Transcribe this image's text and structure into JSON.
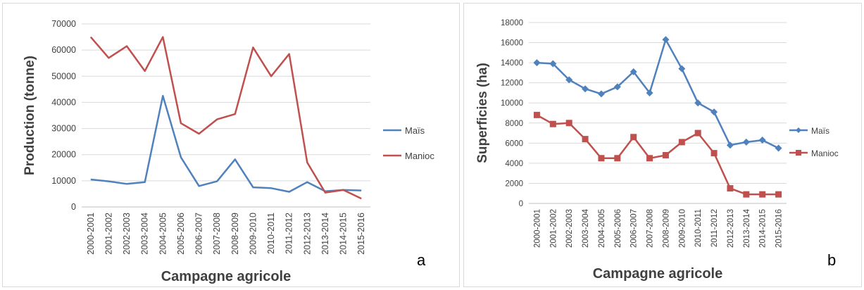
{
  "colors": {
    "mais": "#4f81bd",
    "manioc": "#c0504d",
    "grid": "#d9d9d9"
  },
  "panels": [
    {
      "letter": "a"
    },
    {
      "letter": "b"
    }
  ],
  "chart_data": [
    {
      "type": "line",
      "categories": [
        "2000-2001",
        "2001-2002",
        "2002-2003",
        "2003-2004",
        "2004-2005",
        "2005-2006",
        "2006-2007",
        "2007-2008",
        "2008-2009",
        "2009-2010",
        "2010-2011",
        "2011-2012",
        "2012-2013",
        "2013-2014",
        "2014-2015",
        "2015-2016"
      ],
      "series": [
        {
          "name": "Maïs",
          "color": "#4f81bd",
          "marker": "none",
          "values": [
            10500,
            9800,
            8800,
            9500,
            42500,
            19000,
            8000,
            9800,
            18200,
            7500,
            7200,
            5800,
            9500,
            6000,
            6500,
            6300
          ]
        },
        {
          "name": "Manioc",
          "color": "#c0504d",
          "marker": "none",
          "values": [
            65000,
            57000,
            61500,
            52000,
            65000,
            32000,
            28000,
            33500,
            35500,
            61000,
            50000,
            58500,
            17000,
            5500,
            6500,
            3200
          ]
        }
      ],
      "xlabel": "Campagne agricole",
      "ylabel": "Production (tonne)",
      "ylim": [
        0,
        70000
      ],
      "yticks": [
        0,
        10000,
        20000,
        30000,
        40000,
        50000,
        60000,
        70000
      ],
      "grid": true,
      "legend": "right"
    },
    {
      "type": "line",
      "categories": [
        "2000-2001",
        "2001-2002",
        "2002-2003",
        "2003-2004",
        "2004-2005",
        "2005-2006",
        "2006-2007",
        "2007-2008",
        "2008-2009",
        "2009-2010",
        "2010-2011",
        "2011-2012",
        "2012-2013",
        "2013-2014",
        "2014-2015",
        "2015-2016"
      ],
      "series": [
        {
          "name": "Maïs",
          "color": "#4f81bd",
          "marker": "diamond",
          "values": [
            14000,
            13900,
            12300,
            11400,
            10900,
            11600,
            13100,
            11000,
            16300,
            13400,
            10000,
            9100,
            5800,
            6100,
            6300,
            5500
          ]
        },
        {
          "name": "Manioc",
          "color": "#c0504d",
          "marker": "square",
          "values": [
            8800,
            7900,
            8000,
            6400,
            4500,
            4500,
            6600,
            4500,
            4800,
            6100,
            7000,
            5000,
            1500,
            900,
            900,
            900
          ]
        }
      ],
      "xlabel": "Campagne agricole",
      "ylabel": "Superficies (ha)",
      "ylim": [
        0,
        18000
      ],
      "yticks": [
        0,
        2000,
        4000,
        6000,
        8000,
        10000,
        12000,
        14000,
        16000,
        18000
      ],
      "grid": true,
      "legend": "right"
    }
  ]
}
